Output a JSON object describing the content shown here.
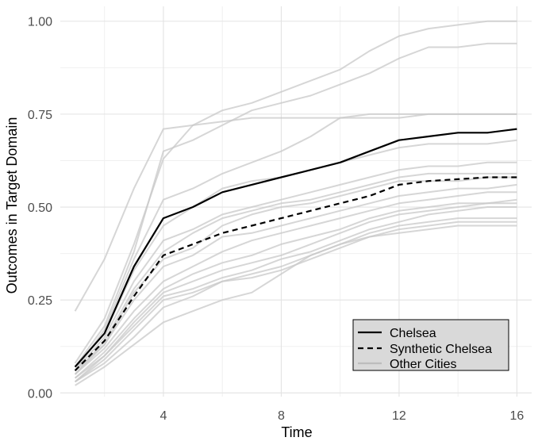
{
  "chart_data": {
    "type": "line",
    "xlabel": "Time",
    "ylabel": "Outcomes in Target Domain",
    "xlim": [
      0.5,
      16.5
    ],
    "ylim": [
      -0.01,
      1.04
    ],
    "x_ticks": [
      4,
      8,
      12,
      16
    ],
    "x_tick_labels": [
      "4",
      "8",
      "12",
      "16"
    ],
    "y_ticks": [
      0,
      0.25,
      0.5,
      0.75,
      1.0
    ],
    "y_tick_labels": [
      "0.00",
      "0.25",
      "0.50",
      "0.75",
      "1.00"
    ],
    "grid": true,
    "legend_position": "bottom-right",
    "x": [
      1,
      2,
      3,
      4,
      5,
      6,
      7,
      8,
      9,
      10,
      11,
      12,
      13,
      14,
      15,
      16
    ],
    "series": [
      {
        "name": "Chelsea",
        "color": "#000000",
        "dash": "solid",
        "values": [
          0.07,
          0.16,
          0.34,
          0.47,
          0.5,
          0.54,
          0.56,
          0.58,
          0.6,
          0.62,
          0.65,
          0.68,
          0.69,
          0.7,
          0.7,
          0.71
        ]
      },
      {
        "name": "Synthetic Chelsea",
        "color": "#000000",
        "dash": "dashed",
        "values": [
          0.06,
          0.14,
          0.26,
          0.37,
          0.4,
          0.43,
          0.45,
          0.47,
          0.49,
          0.51,
          0.53,
          0.56,
          0.57,
          0.575,
          0.58,
          0.58
        ]
      },
      {
        "name": "Other Cities",
        "color": "#c8c8c8",
        "dash": "solid",
        "group": [
          [
            0.22,
            0.36,
            0.55,
            0.71,
            0.72,
            0.73,
            0.74,
            0.74,
            0.74,
            0.74,
            0.74,
            0.74,
            0.75,
            0.75,
            0.75,
            0.75
          ],
          [
            0.08,
            0.2,
            0.4,
            0.63,
            0.72,
            0.76,
            0.78,
            0.81,
            0.84,
            0.87,
            0.92,
            0.96,
            0.98,
            0.99,
            1.0,
            1.0
          ],
          [
            0.07,
            0.18,
            0.38,
            0.65,
            0.68,
            0.72,
            0.76,
            0.78,
            0.8,
            0.83,
            0.86,
            0.9,
            0.93,
            0.93,
            0.94,
            0.94
          ],
          [
            0.06,
            0.17,
            0.36,
            0.52,
            0.55,
            0.59,
            0.62,
            0.65,
            0.69,
            0.74,
            0.75,
            0.75,
            0.75,
            0.75,
            0.75,
            0.75
          ],
          [
            0.07,
            0.16,
            0.33,
            0.45,
            0.5,
            0.55,
            0.57,
            0.58,
            0.6,
            0.62,
            0.64,
            0.66,
            0.67,
            0.67,
            0.67,
            0.68
          ],
          [
            0.06,
            0.15,
            0.3,
            0.41,
            0.44,
            0.48,
            0.5,
            0.52,
            0.54,
            0.56,
            0.58,
            0.6,
            0.61,
            0.61,
            0.62,
            0.62
          ],
          [
            0.05,
            0.14,
            0.28,
            0.38,
            0.43,
            0.47,
            0.49,
            0.51,
            0.52,
            0.54,
            0.56,
            0.58,
            0.59,
            0.59,
            0.59,
            0.59
          ],
          [
            0.05,
            0.13,
            0.27,
            0.36,
            0.39,
            0.45,
            0.48,
            0.5,
            0.51,
            0.53,
            0.55,
            0.57,
            0.57,
            0.57,
            0.58,
            0.58
          ],
          [
            0.06,
            0.13,
            0.25,
            0.34,
            0.37,
            0.42,
            0.43,
            0.45,
            0.47,
            0.49,
            0.51,
            0.53,
            0.54,
            0.55,
            0.55,
            0.56
          ],
          [
            0.05,
            0.12,
            0.22,
            0.3,
            0.34,
            0.38,
            0.41,
            0.43,
            0.45,
            0.47,
            0.49,
            0.51,
            0.52,
            0.53,
            0.54,
            0.54
          ],
          [
            0.04,
            0.11,
            0.2,
            0.28,
            0.32,
            0.35,
            0.37,
            0.4,
            0.42,
            0.44,
            0.47,
            0.49,
            0.5,
            0.51,
            0.51,
            0.52
          ],
          [
            0.04,
            0.1,
            0.19,
            0.27,
            0.3,
            0.33,
            0.35,
            0.37,
            0.4,
            0.43,
            0.46,
            0.48,
            0.49,
            0.5,
            0.51,
            0.51
          ],
          [
            0.03,
            0.1,
            0.18,
            0.26,
            0.28,
            0.31,
            0.33,
            0.36,
            0.38,
            0.41,
            0.44,
            0.46,
            0.48,
            0.49,
            0.5,
            0.5
          ],
          [
            0.03,
            0.09,
            0.17,
            0.25,
            0.27,
            0.3,
            0.32,
            0.34,
            0.37,
            0.4,
            0.43,
            0.45,
            0.46,
            0.47,
            0.47,
            0.47
          ],
          [
            0.03,
            0.08,
            0.15,
            0.23,
            0.26,
            0.3,
            0.31,
            0.33,
            0.36,
            0.39,
            0.42,
            0.44,
            0.45,
            0.46,
            0.46,
            0.46
          ],
          [
            0.02,
            0.07,
            0.13,
            0.19,
            0.22,
            0.25,
            0.27,
            0.32,
            0.37,
            0.4,
            0.42,
            0.43,
            0.44,
            0.45,
            0.45,
            0.45
          ]
        ]
      }
    ]
  }
}
